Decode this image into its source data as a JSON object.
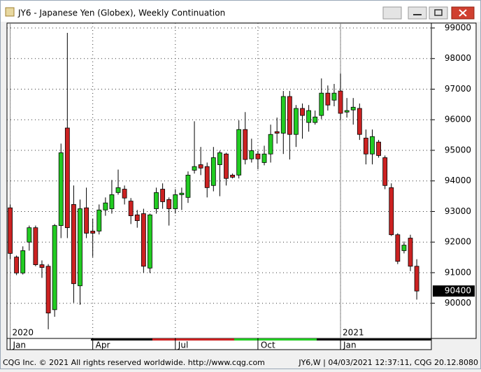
{
  "window_title": "JY6 - Japanese Yen (Globex), Weekly Continuation",
  "footer_left": "CQG Inc. © 2021 All rights reserved worldwide.  http://www.cqg.com",
  "footer_right": "JY6,W | 04/03/2021 12:37:11, CQG 20.12.8080",
  "chart_data": {
    "type": "candlestick",
    "open": [
      93120,
      91510,
      90990,
      92000,
      92470,
      91260,
      91210,
      89790,
      92540,
      95730,
      93230,
      90570,
      93120,
      92360,
      92360,
      93050,
      93090,
      93620,
      93730,
      93340,
      92890,
      92930,
      91150,
      93090,
      93730,
      93390,
      93090,
      93550,
      93460,
      94350,
      94530,
      94470,
      93850,
      94530,
      94880,
      94190,
      94190,
      95680,
      94720,
      94880,
      94600,
      94880,
      95610,
      95560,
      96760,
      95520,
      96370,
      95910,
      95910,
      96140,
      96870,
      96640,
      96940,
      96250,
      96320,
      96370,
      95400,
      94880,
      95270,
      94760,
      93780,
      92240,
      91720,
      92130,
      91210
    ],
    "high": [
      93230,
      91560,
      91860,
      92540,
      92540,
      91400,
      91280,
      92590,
      95220,
      98840,
      93850,
      93390,
      93780,
      92770,
      93230,
      93460,
      94030,
      94370,
      93850,
      93440,
      93050,
      93090,
      92930,
      93780,
      93920,
      93460,
      93730,
      93780,
      94310,
      95950,
      95110,
      94600,
      95110,
      94990,
      94920,
      94240,
      95980,
      96250,
      95380,
      94990,
      95150,
      95840,
      96070,
      96940,
      96940,
      96480,
      96530,
      96480,
      96300,
      97350,
      97120,
      97170,
      97510,
      96710,
      96710,
      96530,
      95680,
      95680,
      95340,
      94830,
      93920,
      92290,
      92020,
      92240,
      91440
    ],
    "low": [
      91440,
      90920,
      90940,
      91720,
      91210,
      90830,
      89150,
      89560,
      92130,
      92130,
      90020,
      89950,
      92130,
      91510,
      92250,
      92860,
      92930,
      93550,
      93230,
      92590,
      92470,
      90990,
      90990,
      92930,
      93090,
      92540,
      92930,
      93050,
      93280,
      94240,
      94190,
      93460,
      93660,
      93500,
      93850,
      94080,
      94080,
      94540,
      94600,
      94380,
      94510,
      94600,
      95220,
      94880,
      94700,
      95110,
      95380,
      95610,
      95840,
      96020,
      96300,
      96440,
      95980,
      96070,
      95840,
      95340,
      94540,
      94540,
      94760,
      93730,
      92200,
      91280,
      91630,
      91050,
      90120
    ],
    "close": [
      91630,
      90990,
      91720,
      92470,
      91260,
      91170,
      89680,
      92540,
      94920,
      92470,
      90640,
      93090,
      92290,
      92290,
      93050,
      93280,
      93550,
      93780,
      93440,
      92860,
      92700,
      91210,
      92890,
      93620,
      93320,
      93090,
      93550,
      93600,
      94190,
      94470,
      94420,
      93780,
      94760,
      94920,
      94080,
      94120,
      95680,
      94700,
      94990,
      94720,
      94880,
      95520,
      95560,
      96760,
      95520,
      96370,
      96140,
      96300,
      96090,
      96870,
      96480,
      96870,
      96210,
      96300,
      96410,
      95520,
      94880,
      95450,
      94830,
      93850,
      92240,
      91370,
      91900,
      91210,
      90400
    ],
    "up_color": "#22cc22",
    "down_color": "#cc2222",
    "last_value": 90400,
    "ylim": [
      88850,
      99160
    ],
    "yticks": [
      90000,
      91000,
      92000,
      93000,
      94000,
      95000,
      96000,
      97000,
      98000,
      99000
    ],
    "xlim": [
      -0.5,
      66.3
    ],
    "xticks": [
      {
        "value": 0,
        "label": "Jan"
      },
      {
        "value": 13,
        "label": "Apr"
      },
      {
        "value": 26,
        "label": "Jul"
      },
      {
        "value": 39,
        "label": "Oct"
      },
      {
        "value": 52,
        "label": "Jan"
      }
    ],
    "year_labels": [
      {
        "value": 0,
        "label": "2020"
      },
      {
        "value": 52,
        "label": "2021"
      }
    ],
    "grid": true
  }
}
